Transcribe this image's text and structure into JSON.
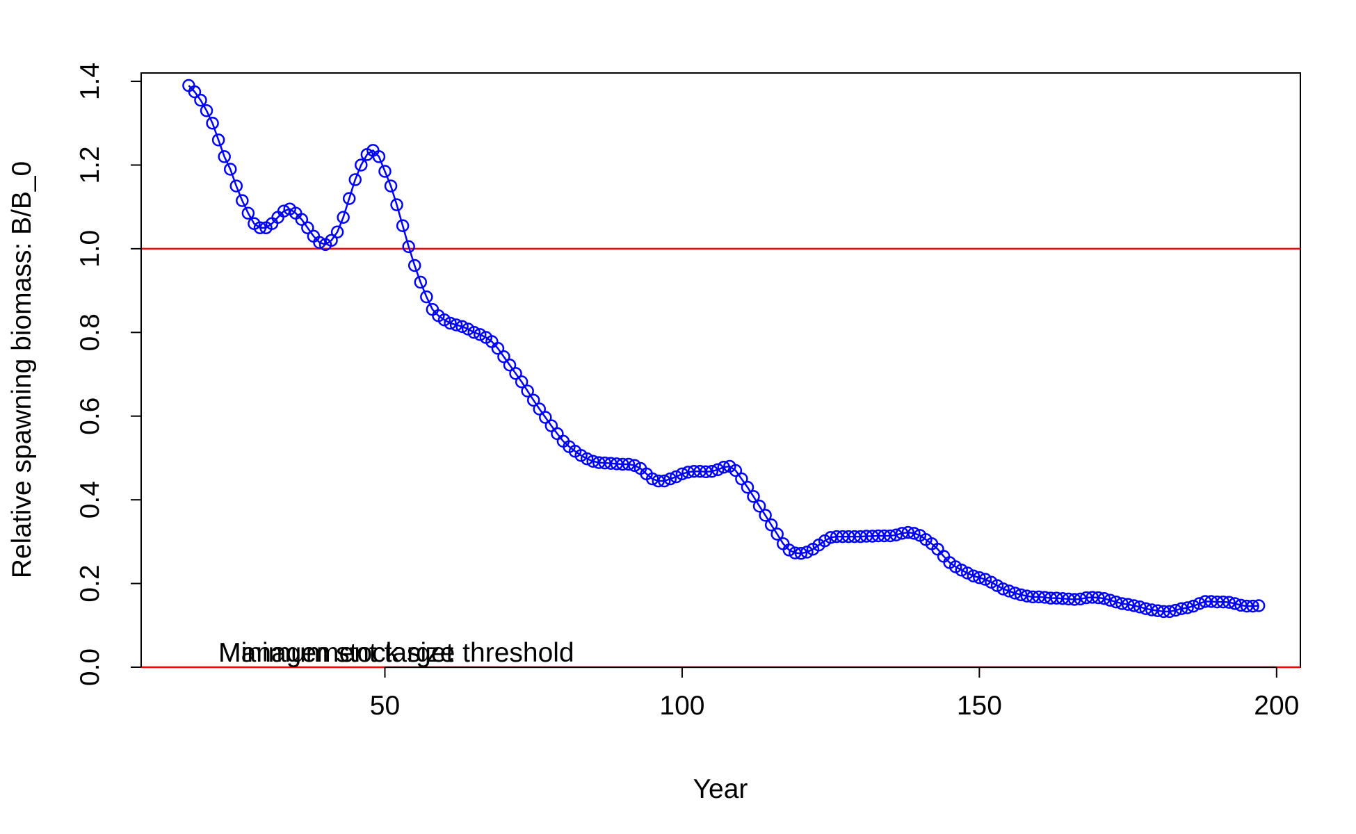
{
  "chart_data": {
    "type": "line",
    "xlabel": "Year",
    "ylabel": "Relative spawning biomass: B/B_0",
    "xlim": [
      9,
      204
    ],
    "ylim": [
      0,
      1.42
    ],
    "x_ticks": [
      50,
      100,
      150,
      200
    ],
    "y_ticks": [
      0.0,
      0.2,
      0.4,
      0.6,
      0.8,
      1.0,
      1.2,
      1.4
    ],
    "y_tick_labels": [
      "0.0",
      "0.2",
      "0.4",
      "0.6",
      "0.8",
      "1.0",
      "1.2",
      "1.4"
    ],
    "grid": false,
    "legend": "none",
    "series": [
      {
        "marker": "open-circle",
        "line": true,
        "color": "#0000ff",
        "anchors": [
          [
            17,
            1.39
          ],
          [
            18,
            1.375
          ],
          [
            19,
            1.355
          ],
          [
            20,
            1.33
          ],
          [
            21,
            1.3
          ],
          [
            22,
            1.26
          ],
          [
            23,
            1.22
          ],
          [
            24,
            1.19
          ],
          [
            25,
            1.15
          ],
          [
            26,
            1.115
          ],
          [
            27,
            1.085
          ],
          [
            28,
            1.06
          ],
          [
            29,
            1.05
          ],
          [
            30,
            1.05
          ],
          [
            31,
            1.06
          ],
          [
            32,
            1.075
          ],
          [
            33,
            1.09
          ],
          [
            34,
            1.095
          ],
          [
            35,
            1.085
          ],
          [
            36,
            1.07
          ],
          [
            37,
            1.05
          ],
          [
            38,
            1.03
          ],
          [
            39,
            1.015
          ],
          [
            40,
            1.01
          ],
          [
            41,
            1.02
          ],
          [
            42,
            1.04
          ],
          [
            43,
            1.075
          ],
          [
            44,
            1.12
          ],
          [
            45,
            1.165
          ],
          [
            46,
            1.2
          ],
          [
            47,
            1.225
          ],
          [
            48,
            1.235
          ],
          [
            49,
            1.22
          ],
          [
            50,
            1.185
          ],
          [
            51,
            1.15
          ],
          [
            52,
            1.105
          ],
          [
            53,
            1.055
          ],
          [
            54,
            1.005
          ],
          [
            55,
            0.96
          ],
          [
            56,
            0.92
          ],
          [
            57,
            0.885
          ],
          [
            58,
            0.855
          ],
          [
            59,
            0.84
          ],
          [
            60,
            0.83
          ],
          [
            61,
            0.822
          ],
          [
            62,
            0.818
          ],
          [
            63,
            0.814
          ],
          [
            64,
            0.808
          ],
          [
            65,
            0.8
          ],
          [
            66,
            0.795
          ],
          [
            67,
            0.788
          ],
          [
            68,
            0.778
          ],
          [
            69,
            0.762
          ],
          [
            70,
            0.742
          ],
          [
            71,
            0.722
          ],
          [
            72,
            0.702
          ],
          [
            73,
            0.682
          ],
          [
            74,
            0.66
          ],
          [
            75,
            0.638
          ],
          [
            76,
            0.617
          ],
          [
            77,
            0.597
          ],
          [
            78,
            0.577
          ],
          [
            79,
            0.558
          ],
          [
            80,
            0.54
          ],
          [
            81,
            0.527
          ],
          [
            82,
            0.516
          ],
          [
            83,
            0.506
          ],
          [
            84,
            0.498
          ],
          [
            85,
            0.492
          ],
          [
            86,
            0.489
          ],
          [
            87,
            0.488
          ],
          [
            88,
            0.487
          ],
          [
            89,
            0.486
          ],
          [
            90,
            0.485
          ],
          [
            91,
            0.485
          ],
          [
            92,
            0.482
          ],
          [
            93,
            0.475
          ],
          [
            94,
            0.462
          ],
          [
            95,
            0.45
          ],
          [
            96,
            0.445
          ],
          [
            97,
            0.445
          ],
          [
            98,
            0.45
          ],
          [
            99,
            0.455
          ],
          [
            100,
            0.462
          ],
          [
            101,
            0.466
          ],
          [
            102,
            0.468
          ],
          [
            103,
            0.468
          ],
          [
            104,
            0.467
          ],
          [
            105,
            0.468
          ],
          [
            106,
            0.472
          ],
          [
            107,
            0.478
          ],
          [
            108,
            0.48
          ],
          [
            109,
            0.47
          ],
          [
            110,
            0.45
          ],
          [
            111,
            0.43
          ],
          [
            112,
            0.408
          ],
          [
            113,
            0.385
          ],
          [
            114,
            0.363
          ],
          [
            115,
            0.34
          ],
          [
            116,
            0.318
          ],
          [
            117,
            0.295
          ],
          [
            118,
            0.28
          ],
          [
            119,
            0.273
          ],
          [
            120,
            0.272
          ],
          [
            121,
            0.275
          ],
          [
            122,
            0.282
          ],
          [
            123,
            0.292
          ],
          [
            124,
            0.302
          ],
          [
            125,
            0.31
          ],
          [
            126,
            0.312
          ],
          [
            127,
            0.312
          ],
          [
            128,
            0.312
          ],
          [
            129,
            0.312
          ],
          [
            130,
            0.312
          ],
          [
            131,
            0.313
          ],
          [
            132,
            0.313
          ],
          [
            133,
            0.314
          ],
          [
            134,
            0.314
          ],
          [
            135,
            0.314
          ],
          [
            136,
            0.316
          ],
          [
            137,
            0.32
          ],
          [
            138,
            0.322
          ],
          [
            139,
            0.32
          ],
          [
            140,
            0.315
          ],
          [
            141,
            0.305
          ],
          [
            142,
            0.295
          ],
          [
            143,
            0.282
          ],
          [
            144,
            0.265
          ],
          [
            145,
            0.25
          ],
          [
            146,
            0.24
          ],
          [
            147,
            0.232
          ],
          [
            148,
            0.225
          ],
          [
            149,
            0.218
          ],
          [
            150,
            0.214
          ],
          [
            151,
            0.21
          ],
          [
            152,
            0.203
          ],
          [
            153,
            0.195
          ],
          [
            154,
            0.187
          ],
          [
            155,
            0.182
          ],
          [
            156,
            0.177
          ],
          [
            157,
            0.173
          ],
          [
            158,
            0.17
          ],
          [
            159,
            0.168
          ],
          [
            160,
            0.168
          ],
          [
            161,
            0.167
          ],
          [
            162,
            0.165
          ],
          [
            163,
            0.165
          ],
          [
            164,
            0.164
          ],
          [
            165,
            0.163
          ],
          [
            166,
            0.162
          ],
          [
            167,
            0.163
          ],
          [
            168,
            0.166
          ],
          [
            169,
            0.167
          ],
          [
            170,
            0.166
          ],
          [
            171,
            0.164
          ],
          [
            172,
            0.16
          ],
          [
            173,
            0.156
          ],
          [
            174,
            0.152
          ],
          [
            175,
            0.15
          ],
          [
            176,
            0.147
          ],
          [
            177,
            0.144
          ],
          [
            178,
            0.14
          ],
          [
            179,
            0.137
          ],
          [
            180,
            0.135
          ],
          [
            181,
            0.133
          ],
          [
            182,
            0.133
          ],
          [
            183,
            0.136
          ],
          [
            184,
            0.14
          ],
          [
            185,
            0.142
          ],
          [
            186,
            0.146
          ],
          [
            187,
            0.152
          ],
          [
            188,
            0.157
          ],
          [
            189,
            0.157
          ],
          [
            190,
            0.156
          ],
          [
            191,
            0.156
          ],
          [
            192,
            0.155
          ],
          [
            193,
            0.152
          ],
          [
            194,
            0.148
          ],
          [
            195,
            0.146
          ],
          [
            196,
            0.146
          ],
          [
            197,
            0.147
          ]
        ]
      }
    ],
    "reference_lines": [
      {
        "y": 1.0,
        "color": "#ff0000"
      },
      {
        "y": 0.0,
        "color": "#ff0000"
      }
    ],
    "annotations": [
      {
        "text": "Management target",
        "x": 22,
        "y": 0.03
      },
      {
        "text": "Minimum stock size threshold",
        "x": 22,
        "y": 0.03
      }
    ]
  }
}
